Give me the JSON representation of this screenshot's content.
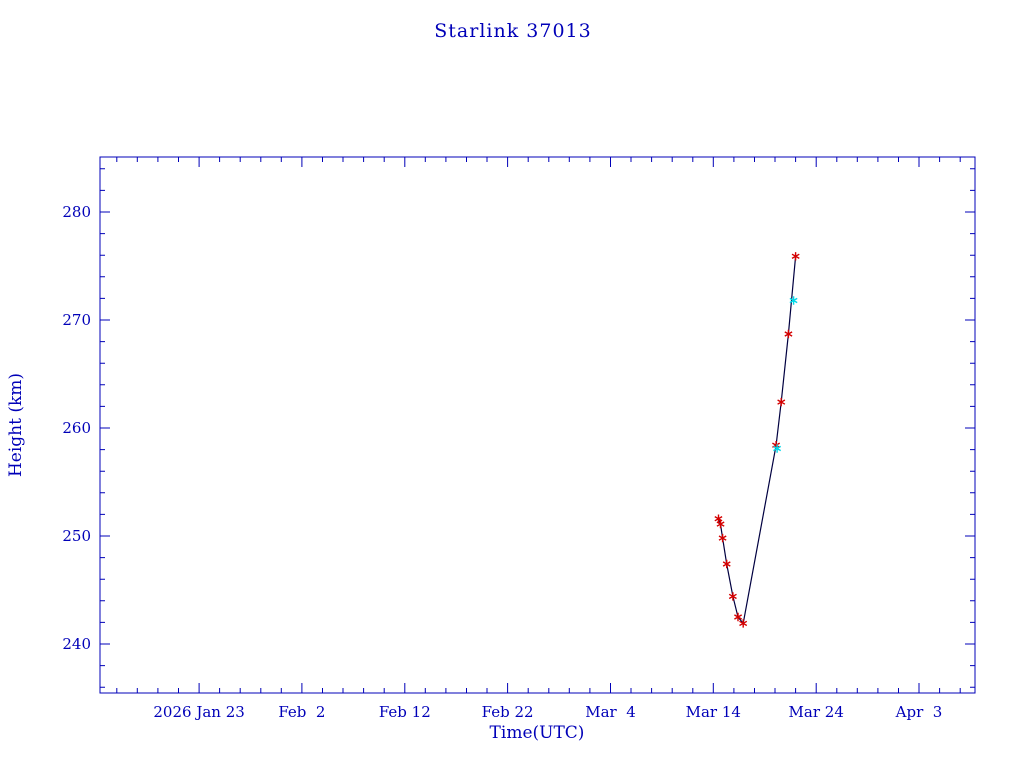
{
  "page": {
    "background": "#ffffff"
  },
  "chart_data": {
    "type": "line",
    "title": "Starlink 37013",
    "xlabel": "Time(UTC)",
    "ylabel": "Height (km)",
    "grid": false,
    "legend": null,
    "text_color": "#0000b8",
    "axis_color": "#0000b8",
    "line_color": "#000040",
    "x_unit": "days since 2026 Jan 23 (UTC)",
    "xlim": [
      -9.63,
      75.44
    ],
    "ylim": [
      235.46,
      285.09
    ],
    "minor_tick_step_x": 2,
    "minor_tick_step_y": 2,
    "xticks": [
      {
        "value": 0,
        "label": "2026 Jan 23"
      },
      {
        "value": 10,
        "label": "Feb  2"
      },
      {
        "value": 20,
        "label": "Feb 12"
      },
      {
        "value": 30,
        "label": "Feb 22"
      },
      {
        "value": 40,
        "label": "Mar  4"
      },
      {
        "value": 50,
        "label": "Mar 14"
      },
      {
        "value": 60,
        "label": "Mar 24"
      },
      {
        "value": 70,
        "label": "Apr  3"
      }
    ],
    "yticks": [
      {
        "value": 240,
        "label": "240"
      },
      {
        "value": 250,
        "label": "250"
      },
      {
        "value": 260,
        "label": "260"
      },
      {
        "value": 270,
        "label": "270"
      },
      {
        "value": 280,
        "label": "280"
      }
    ],
    "series": [
      {
        "name": "height-observations",
        "marker": "asterisk",
        "marker_color": "#d40000",
        "line": true,
        "points": [
          {
            "x": 50.5,
            "y": 251.6
          },
          {
            "x": 50.7,
            "y": 251.1
          },
          {
            "x": 50.9,
            "y": 249.8
          },
          {
            "x": 51.3,
            "y": 247.4
          },
          {
            "x": 51.9,
            "y": 244.4
          },
          {
            "x": 52.4,
            "y": 242.5
          },
          {
            "x": 52.9,
            "y": 241.9
          },
          {
            "x": 56.1,
            "y": 258.4
          },
          {
            "x": 56.6,
            "y": 262.4
          },
          {
            "x": 57.3,
            "y": 268.7
          },
          {
            "x": 58.0,
            "y": 275.9
          }
        ]
      },
      {
        "name": "highlight-points",
        "marker": "asterisk",
        "marker_color": "#00d8e8",
        "line": false,
        "points": [
          {
            "x": 56.2,
            "y": 258.1
          },
          {
            "x": 57.8,
            "y": 271.8
          }
        ]
      }
    ]
  }
}
